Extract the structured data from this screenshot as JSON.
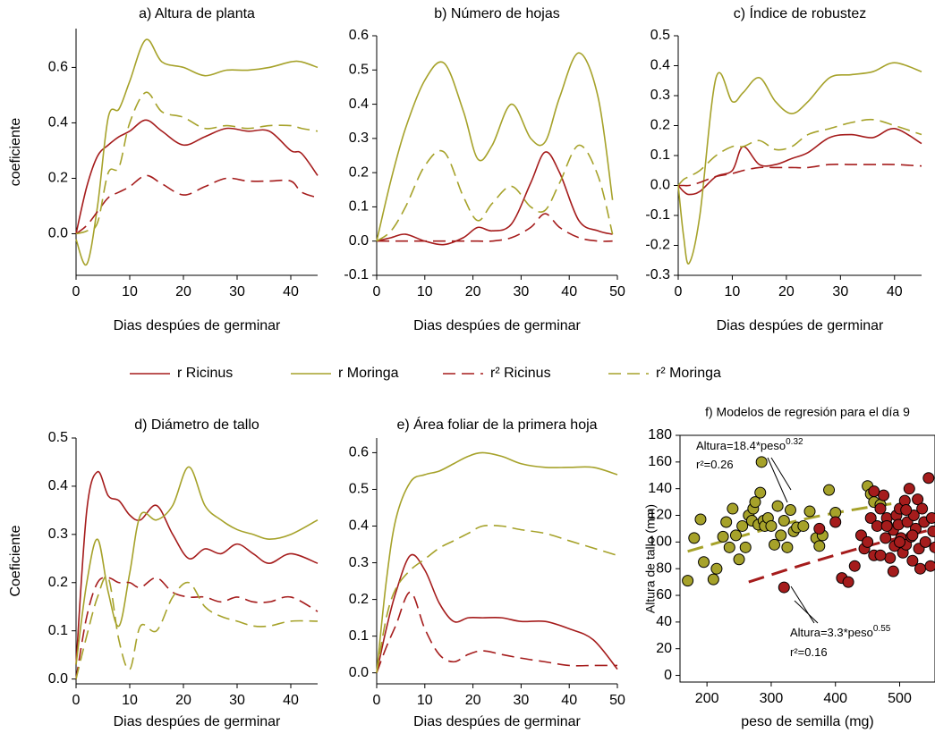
{
  "chart_data": [
    {
      "type": "line",
      "title": "a) Altura de planta",
      "xlabel": "Dias despúes de germinar",
      "ylabel": "coeficiente",
      "x": [
        0,
        2,
        4,
        6,
        8,
        10,
        13,
        16,
        20,
        24,
        28,
        32,
        36,
        40,
        42,
        45
      ],
      "xlim": [
        0,
        45
      ],
      "ylim": [
        -0.15,
        0.74
      ],
      "xticks": [
        0,
        10,
        20,
        30,
        40
      ],
      "yticks": [
        {
          "value": 0,
          "label": "0.0"
        },
        0.2,
        0.4,
        0.6
      ],
      "series": [
        {
          "name": "r Ricinus",
          "color": "#a51c1c",
          "dash": false,
          "values": [
            0,
            0.17,
            0.28,
            0.32,
            0.35,
            0.37,
            0.41,
            0.37,
            0.32,
            0.35,
            0.38,
            0.37,
            0.37,
            0.3,
            0.29,
            0.21
          ]
        },
        {
          "name": "r Moringa",
          "color": "#a6a22a",
          "dash": false,
          "values": [
            -0.02,
            -0.11,
            0.1,
            0.42,
            0.45,
            0.55,
            0.7,
            0.62,
            0.6,
            0.57,
            0.59,
            0.59,
            0.6,
            0.62,
            0.62,
            0.6
          ]
        },
        {
          "name": "r² Ricinus",
          "color": "#a51c1c",
          "dash": true,
          "values": [
            0,
            0.03,
            0.08,
            0.13,
            0.15,
            0.17,
            0.21,
            0.18,
            0.14,
            0.17,
            0.2,
            0.19,
            0.19,
            0.19,
            0.15,
            0.13
          ]
        },
        {
          "name": "r² Moringa",
          "color": "#a6a22a",
          "dash": true,
          "values": [
            0,
            0.01,
            0.04,
            0.22,
            0.24,
            0.4,
            0.51,
            0.44,
            0.42,
            0.38,
            0.39,
            0.38,
            0.39,
            0.39,
            0.38,
            0.37
          ]
        }
      ]
    },
    {
      "type": "line",
      "title": "b) Número de hojas",
      "xlabel": "Dias despúes de germinar",
      "x": [
        0,
        3,
        6,
        10,
        14,
        18,
        21,
        24,
        28,
        32,
        35,
        38,
        42,
        46,
        49
      ],
      "xlim": [
        0,
        50
      ],
      "ylim": [
        -0.1,
        0.6
      ],
      "xticks": [
        0,
        10,
        20,
        30,
        40,
        50
      ],
      "yticks": [
        -0.1,
        {
          "value": 0,
          "label": "0.0"
        },
        0.1,
        0.2,
        0.3,
        0.4,
        0.5,
        0.6
      ],
      "series": [
        {
          "name": "r Ricinus",
          "color": "#a51c1c",
          "dash": false,
          "values": [
            0,
            0.01,
            0.02,
            0.0,
            -0.01,
            0.01,
            0.04,
            0.03,
            0.05,
            0.17,
            0.26,
            0.2,
            0.06,
            0.03,
            0.02
          ]
        },
        {
          "name": "r Moringa",
          "color": "#a6a22a",
          "dash": false,
          "values": [
            0,
            0.18,
            0.33,
            0.47,
            0.52,
            0.38,
            0.24,
            0.28,
            0.4,
            0.3,
            0.29,
            0.42,
            0.55,
            0.42,
            0.12
          ]
        },
        {
          "name": "r² Ricinus",
          "color": "#a51c1c",
          "dash": true,
          "values": [
            0,
            0,
            0,
            0,
            0,
            0,
            0,
            0,
            0.01,
            0.04,
            0.08,
            0.04,
            0.01,
            0,
            0
          ]
        },
        {
          "name": "r² Moringa",
          "color": "#a6a22a",
          "dash": true,
          "values": [
            0,
            0.03,
            0.1,
            0.22,
            0.26,
            0.13,
            0.06,
            0.11,
            0.16,
            0.1,
            0.09,
            0.17,
            0.28,
            0.19,
            0.02
          ]
        }
      ]
    },
    {
      "type": "line",
      "title": "c) Índice de robustez",
      "xlabel": "Dias despúes de germinar",
      "x": [
        0,
        1,
        2,
        4,
        7,
        10,
        12,
        15,
        18,
        21,
        24,
        28,
        32,
        36,
        40,
        45
      ],
      "xlim": [
        0,
        45
      ],
      "ylim": [
        -0.3,
        0.5
      ],
      "xticks": [
        0,
        10,
        20,
        30,
        40
      ],
      "yticks": [
        -0.3,
        -0.2,
        -0.1,
        {
          "value": 0,
          "label": "0.0"
        },
        0.1,
        0.2,
        0.3,
        0.4,
        0.5
      ],
      "series": [
        {
          "name": "r Ricinus",
          "color": "#a51c1c",
          "dash": false,
          "values": [
            0,
            -0.02,
            -0.03,
            -0.02,
            0.03,
            0.05,
            0.13,
            0.07,
            0.07,
            0.09,
            0.11,
            0.16,
            0.17,
            0.16,
            0.19,
            0.14
          ]
        },
        {
          "name": "r Moringa",
          "color": "#a6a22a",
          "dash": false,
          "values": [
            0,
            -0.17,
            -0.26,
            -0.1,
            0.36,
            0.28,
            0.31,
            0.36,
            0.28,
            0.24,
            0.28,
            0.36,
            0.37,
            0.38,
            0.41,
            0.38
          ]
        },
        {
          "name": "r² Ricinus",
          "color": "#a51c1c",
          "dash": true,
          "values": [
            0,
            0,
            0,
            0.01,
            0.03,
            0.04,
            0.05,
            0.06,
            0.06,
            0.06,
            0.06,
            0.07,
            0.07,
            0.07,
            0.07,
            0.065
          ]
        },
        {
          "name": "r² Moringa",
          "color": "#a6a22a",
          "dash": true,
          "values": [
            0,
            0.02,
            0.03,
            0.05,
            0.1,
            0.13,
            0.13,
            0.15,
            0.12,
            0.13,
            0.17,
            0.19,
            0.21,
            0.22,
            0.2,
            0.17
          ]
        }
      ]
    },
    {
      "type": "line",
      "title": "d) Diámetro de tallo",
      "xlabel": "Dias despúes de germinar",
      "ylabel": "Coeficiente",
      "x": [
        0,
        2,
        4,
        6,
        8,
        10,
        12,
        15,
        18,
        21,
        24,
        27,
        30,
        33,
        36,
        40,
        45
      ],
      "xlim": [
        0,
        45
      ],
      "ylim": [
        -0.01,
        0.5
      ],
      "xticks": [
        0,
        10,
        20,
        30,
        40
      ],
      "yticks": [
        {
          "value": 0,
          "label": "0.0"
        },
        0.1,
        0.2,
        0.3,
        0.4,
        0.5
      ],
      "series": [
        {
          "name": "r Ricinus",
          "color": "#a51c1c",
          "dash": false,
          "values": [
            0.03,
            0.35,
            0.43,
            0.38,
            0.37,
            0.34,
            0.33,
            0.36,
            0.3,
            0.25,
            0.27,
            0.26,
            0.28,
            0.26,
            0.24,
            0.26,
            0.24
          ]
        },
        {
          "name": "r Moringa",
          "color": "#a6a22a",
          "dash": false,
          "values": [
            0.03,
            0.2,
            0.29,
            0.18,
            0.11,
            0.22,
            0.34,
            0.33,
            0.36,
            0.44,
            0.36,
            0.33,
            0.31,
            0.3,
            0.29,
            0.3,
            0.33
          ]
        },
        {
          "name": "r² Ricinus",
          "color": "#a51c1c",
          "dash": true,
          "values": [
            0,
            0.13,
            0.2,
            0.21,
            0.2,
            0.2,
            0.19,
            0.21,
            0.18,
            0.17,
            0.17,
            0.16,
            0.17,
            0.16,
            0.16,
            0.17,
            0.14
          ]
        },
        {
          "name": "r² Moringa",
          "color": "#a6a22a",
          "dash": true,
          "values": [
            0,
            0.09,
            0.17,
            0.21,
            0.08,
            0.02,
            0.11,
            0.1,
            0.17,
            0.2,
            0.15,
            0.13,
            0.12,
            0.11,
            0.11,
            0.12,
            0.12
          ]
        }
      ]
    },
    {
      "type": "line",
      "title": "e) Área foliar de la primera hoja",
      "xlabel": "Dias despúes de germinar",
      "x": [
        0,
        2,
        4,
        7,
        10,
        13,
        16,
        19,
        22,
        26,
        30,
        35,
        40,
        45,
        50
      ],
      "xlim": [
        0,
        50
      ],
      "ylim": [
        -0.03,
        0.64
      ],
      "xticks": [
        0,
        10,
        20,
        30,
        40,
        50
      ],
      "yticks": [
        {
          "value": 0,
          "label": "0.0"
        },
        0.1,
        0.2,
        0.3,
        0.4,
        0.5,
        0.6
      ],
      "series": [
        {
          "name": "r Ricinus",
          "color": "#a51c1c",
          "dash": false,
          "values": [
            0,
            0.12,
            0.22,
            0.32,
            0.28,
            0.19,
            0.14,
            0.15,
            0.15,
            0.15,
            0.14,
            0.14,
            0.12,
            0.09,
            0.01
          ]
        },
        {
          "name": "r Moringa",
          "color": "#a6a22a",
          "dash": false,
          "values": [
            0,
            0.25,
            0.42,
            0.52,
            0.54,
            0.55,
            0.57,
            0.59,
            0.6,
            0.59,
            0.57,
            0.56,
            0.56,
            0.56,
            0.54
          ]
        },
        {
          "name": "r² Ricinus",
          "color": "#a51c1c",
          "dash": true,
          "values": [
            0,
            0.07,
            0.13,
            0.22,
            0.12,
            0.05,
            0.03,
            0.05,
            0.06,
            0.05,
            0.04,
            0.03,
            0.02,
            0.02,
            0.02
          ]
        },
        {
          "name": "r² Moringa",
          "color": "#a6a22a",
          "dash": true,
          "values": [
            0,
            0.15,
            0.23,
            0.28,
            0.31,
            0.34,
            0.36,
            0.38,
            0.4,
            0.4,
            0.39,
            0.38,
            0.36,
            0.34,
            0.32
          ]
        }
      ]
    },
    {
      "type": "scatter",
      "title": "f) Modelos de regresión para el día 9",
      "xlabel": "peso de semilla (mg)",
      "ylabel": "Altura de tallo (mm)",
      "xlim": [
        158,
        555
      ],
      "ylim": [
        -5,
        180
      ],
      "xticks": [
        200,
        300,
        400,
        500
      ],
      "yticks": [
        0,
        20,
        40,
        60,
        80,
        100,
        120,
        140,
        160,
        180
      ],
      "series": [
        {
          "color": "#a6a22a",
          "x": [
            170,
            180,
            190,
            195,
            210,
            215,
            225,
            230,
            235,
            240,
            245,
            250,
            255,
            260,
            265,
            270,
            272,
            275,
            280,
            283,
            285,
            288,
            290,
            295,
            300,
            305,
            310,
            315,
            320,
            325,
            330,
            335,
            340,
            350,
            360,
            370,
            375,
            380,
            390,
            400,
            450,
            455,
            460,
            470,
            480
          ],
          "values": [
            71,
            103,
            117,
            85,
            72,
            80,
            104,
            115,
            96,
            125,
            105,
            87,
            112,
            96,
            120,
            116,
            125,
            130,
            113,
            137,
            160,
            116,
            112,
            118,
            112,
            98,
            127,
            105,
            116,
            96,
            124,
            108,
            111,
            112,
            123,
            103,
            97,
            105,
            139,
            122,
            142,
            136,
            130,
            128,
            113
          ]
        },
        {
          "color": "#a51c1c",
          "x": [
            320,
            375,
            400,
            410,
            420,
            430,
            440,
            445,
            450,
            455,
            460,
            465,
            470,
            475,
            478,
            480,
            485,
            490,
            492,
            495,
            498,
            500,
            502,
            505,
            508,
            510,
            512,
            515,
            518,
            520,
            522,
            525,
            528,
            530,
            532,
            535,
            538,
            540,
            545,
            548,
            550,
            552,
            555,
            460,
            470,
            480,
            490,
            500,
            510,
            520
          ],
          "values": [
            66,
            110,
            115,
            73,
            70,
            82,
            105,
            95,
            100,
            118,
            90,
            112,
            125,
            135,
            103,
            118,
            88,
            109,
            97,
            120,
            113,
            125,
            103,
            92,
            131,
            98,
            115,
            140,
            104,
            86,
            120,
            110,
            132,
            95,
            80,
            125,
            115,
            100,
            148,
            82,
            118,
            108,
            96,
            138,
            90,
            112,
            78,
            100,
            124,
            105
          ]
        }
      ],
      "fits": [
        {
          "color": "#a6a22a",
          "x": [
            170,
            250,
            350,
            450,
            510
          ],
          "values": [
            93,
            104,
            117,
            126,
            130
          ]
        },
        {
          "color": "#a51c1c",
          "x": [
            265,
            350,
            450,
            555
          ],
          "values": [
            70,
            83,
            97,
            110
          ]
        }
      ],
      "annotations": [
        {
          "text": "Altura=18.4*peso",
          "sup": "0.32"
        },
        {
          "text": "r²=0.26"
        },
        {
          "text": "Altura=3.3*peso",
          "sup": "0.55"
        },
        {
          "text": "r²=0.16"
        }
      ]
    }
  ]
}
